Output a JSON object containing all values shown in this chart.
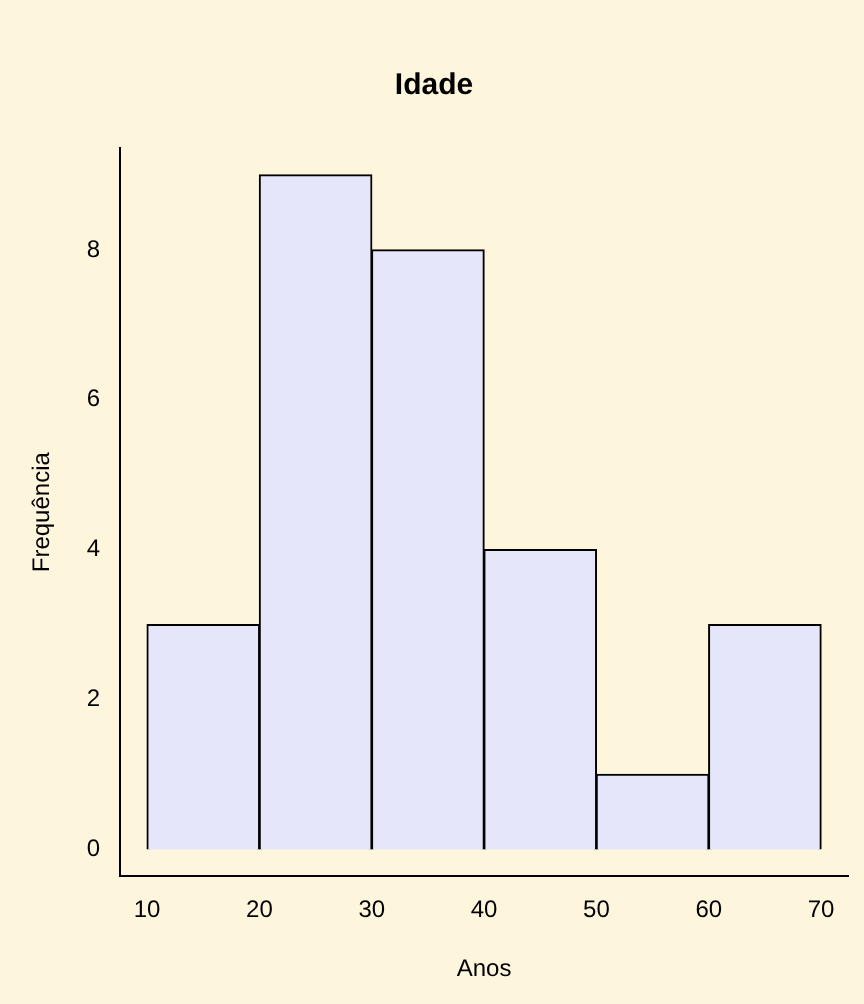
{
  "chart_data": {
    "type": "histogram",
    "title": "Idade",
    "xlabel": "Anos",
    "ylabel": "Frequência",
    "bins": [
      10,
      20,
      30,
      40,
      50,
      60,
      70
    ],
    "values": [
      3,
      9,
      8,
      4,
      1,
      3
    ],
    "color": "#e6e6fa",
    "xlim": [
      7.6,
      72.4
    ],
    "xticks": [
      10,
      20,
      30,
      40,
      50,
      60,
      70
    ],
    "ylim": [
      -0.36,
      9.36
    ],
    "yticks": [
      0,
      2,
      4,
      6,
      8
    ],
    "grid": false,
    "legend": false
  }
}
